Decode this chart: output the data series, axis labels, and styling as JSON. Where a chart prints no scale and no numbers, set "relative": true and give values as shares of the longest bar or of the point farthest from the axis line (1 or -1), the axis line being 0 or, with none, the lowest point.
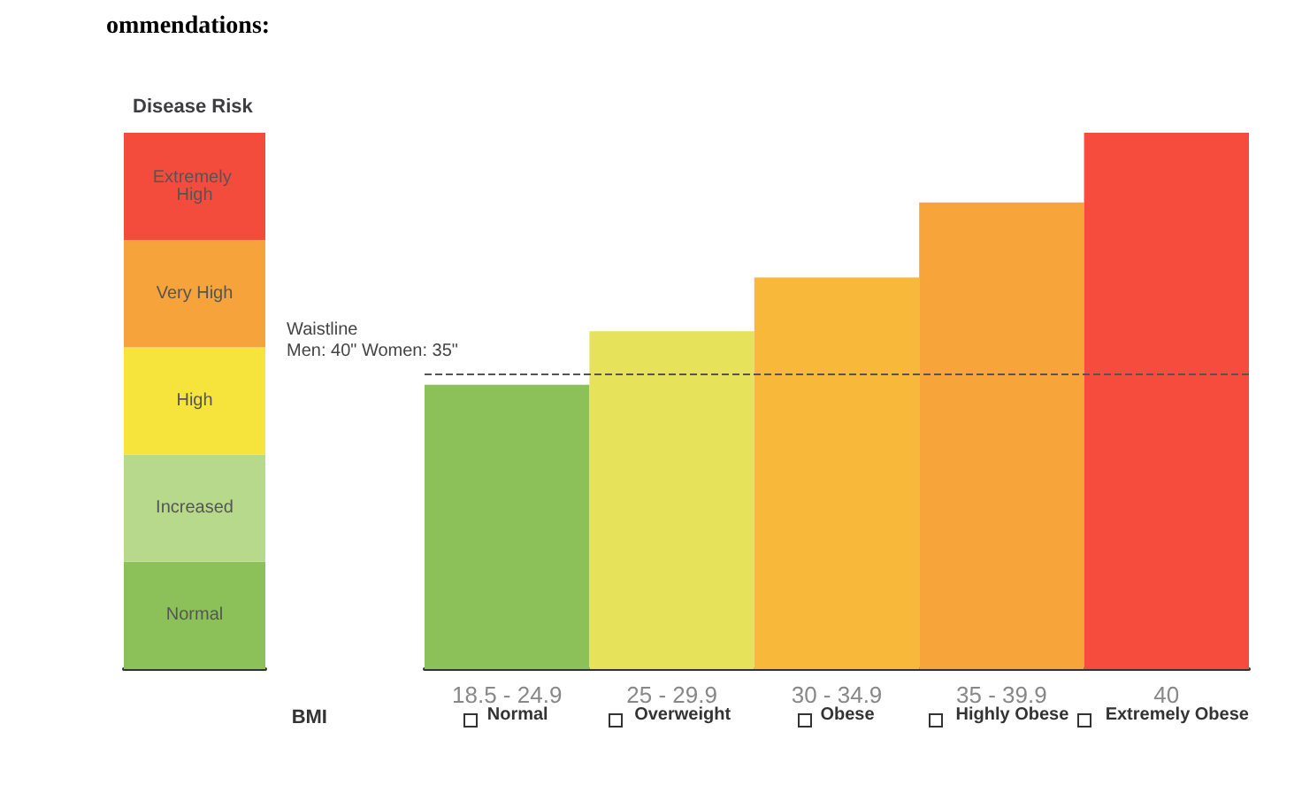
{
  "chart_data": [
    {
      "type": "bar",
      "title": "Disease Risk",
      "relative": true,
      "stacked": true,
      "categories": [
        null
      ],
      "legend": false,
      "annotations": [
        "ommendations:"
      ],
      "series": [
        {
          "name": "Normal",
          "color": "#8cc15a",
          "values": [
            0.2
          ]
        },
        {
          "name": "Increased",
          "color": "#b6d98b",
          "values": [
            0.2
          ]
        },
        {
          "name": "High",
          "color": "#f6e43c",
          "values": [
            0.2
          ]
        },
        {
          "name": "Very High",
          "color": "#f7a33b",
          "values": [
            0.2
          ]
        },
        {
          "name": "Extremely High",
          "color": "#f34c3d",
          "values": [
            0.2
          ]
        }
      ]
    },
    {
      "type": "bar",
      "relative": true,
      "xlabel": "BMI",
      "legend": false,
      "categories": [
        "18.5 - 24.9\nNormal",
        "25 - 29.9\nOverweight",
        "30 - 34.9\nObese",
        "35 - 39.9\nHighly Obese",
        "40\nExtremely Obese"
      ],
      "values": [
        0.53,
        0.63,
        0.73,
        0.87,
        1.0
      ],
      "colors": [
        "#8cc15a",
        "#e6e25a",
        "#f8b83a",
        "#f7a43a",
        "#f54c3e"
      ],
      "ref_lines": [
        {
          "axis": "y",
          "value": 0.55,
          "line_style": "dashed",
          "color": "#555555"
        }
      ],
      "annotations": [
        "Waistline\nMen: 40\" Women: 35\""
      ]
    }
  ]
}
